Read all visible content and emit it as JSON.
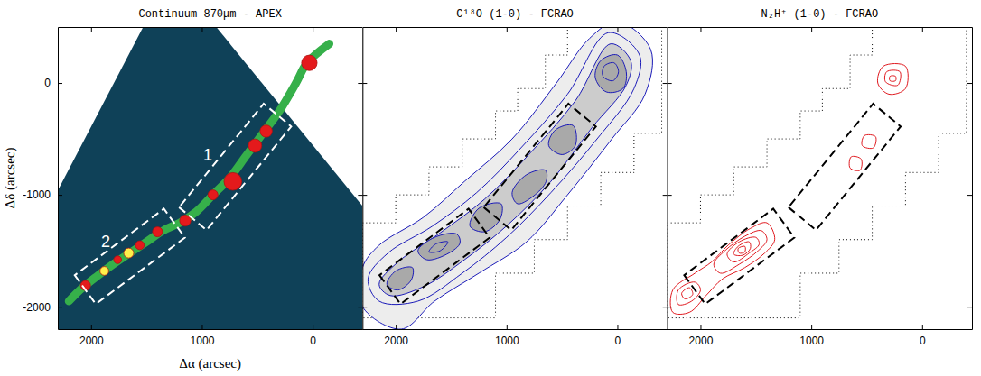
{
  "chart_data": [
    {
      "type": "image",
      "title": "Continuum 870μm - APEX",
      "x_label": "Δα (arcsec)",
      "y_label": "Δδ (arcsec)",
      "xlim": [
        2300,
        -450
      ],
      "ylim": [
        -2200,
        500
      ],
      "xticks": [
        2000,
        1000,
        0
      ],
      "yticks": [
        0,
        -1000,
        -2000
      ],
      "tick_labels": true,
      "coverage": {
        "x": [
          2300,
          1530,
          870,
          -450,
          -450,
          2300
        ],
        "y": [
          -960,
          500,
          500,
          -1100,
          -2200,
          -2200
        ],
        "color": "#0f4158"
      },
      "filament": {
        "x": [
          -150,
          50,
          150,
          300,
          450,
          600,
          750,
          900,
          1050,
          1200,
          1350,
          1500,
          1650,
          1800,
          1950,
          2100,
          2200
        ],
        "y": [
          350,
          180,
          0,
          -250,
          -450,
          -650,
          -850,
          -1000,
          -1150,
          -1250,
          -1320,
          -1420,
          -1520,
          -1620,
          -1730,
          -1850,
          -1950
        ],
        "color": "#36b04a"
      },
      "clumps": {
        "x": [
          30,
          420,
          520,
          720,
          900,
          1150,
          1400,
          1560,
          1660,
          1760,
          1880,
          2050
        ],
        "y": [
          180,
          -430,
          -560,
          -880,
          -1000,
          -1230,
          -1330,
          -1450,
          -1520,
          -1580,
          -1680,
          -1810
        ],
        "radius": [
          70,
          55,
          60,
          80,
          45,
          50,
          45,
          40,
          45,
          35,
          40,
          45
        ],
        "colors": [
          "#e41a1c",
          "#e41a1c",
          "#e41a1c",
          "#e41a1c",
          "#e41a1c",
          "#e41a1c",
          "#e41a1c",
          "#e41a1c",
          "#fff04a",
          "#e41a1c",
          "#fff04a",
          "#e41a1c"
        ]
      },
      "boxes": [
        {
          "label": "1",
          "x": [
            1206,
            958,
            194,
            442
          ],
          "y": [
            -1111,
            -1315,
            -389,
            -185
          ],
          "color": "#ffffff"
        },
        {
          "label": "2",
          "x": [
            2147,
            1957,
            1153,
            1343
          ],
          "y": [
            -1718,
            -1976,
            -1382,
            -1124
          ],
          "color": "#ffffff"
        }
      ]
    },
    {
      "type": "contour",
      "title": "C¹⁸O (1-0) - FCRAO",
      "xlim": [
        2300,
        -450
      ],
      "ylim": [
        -2200,
        500
      ],
      "xticks": [
        2000,
        1000,
        0
      ],
      "yticks": [
        0,
        -1000,
        -2000
      ],
      "tick_labels": "x",
      "color": "#1a1ab8",
      "coverage": {
        "x": [
          2300,
          2000,
          2000,
          1700,
          1700,
          1400,
          1400,
          1100,
          1100,
          900,
          900,
          650,
          650,
          450,
          450,
          -400,
          -400,
          -150,
          -150,
          150,
          150,
          450,
          450,
          750,
          750,
          1100,
          1100,
          2300
        ],
        "y": [
          -1250,
          -1250,
          -1000,
          -1000,
          -750,
          -750,
          -500,
          -500,
          -250,
          -250,
          -50,
          -50,
          250,
          250,
          500,
          500,
          -450,
          -450,
          -800,
          -800,
          -1100,
          -1100,
          -1400,
          -1400,
          -1700,
          -1700,
          -2100,
          -2100
        ],
        "line_style": "dotted"
      },
      "contours": [
        {
          "x": [
            0,
            250,
            550,
            950,
            1380,
            1750,
            2150,
            2300,
            2300,
            1950,
            1650,
            1250,
            820,
            450,
            50,
            -250,
            -300
          ],
          "y": [
            550,
            400,
            0,
            -500,
            -880,
            -1200,
            -1450,
            -1650,
            -2000,
            -2200,
            -1950,
            -1700,
            -1420,
            -1000,
            -500,
            -100,
            300
          ],
          "color": "#ededed"
        },
        {
          "x": [
            80,
            450,
            870,
            1270,
            1670,
            2070,
            2250,
            2150,
            1800,
            1400,
            1000,
            600,
            200,
            -150,
            -200
          ],
          "y": [
            450,
            -100,
            -580,
            -980,
            -1280,
            -1520,
            -1750,
            -1950,
            -1950,
            -1700,
            -1380,
            -980,
            -520,
            -50,
            250
          ],
          "color": "none"
        },
        {
          "x": [
            60,
            380,
            800,
            1200,
            1600,
            1980,
            2150,
            2050,
            1750,
            1380,
            980,
            600,
            230,
            -80,
            -120
          ],
          "y": [
            350,
            -160,
            -640,
            -1040,
            -1340,
            -1600,
            -1800,
            -1900,
            -1820,
            -1580,
            -1260,
            -880,
            -400,
            -20,
            200
          ],
          "color": "#cccccc"
        },
        {
          "x": [
            0,
            150,
            200,
            100,
            -50,
            -80
          ],
          "y": [
            250,
            200,
            50,
            -80,
            -50,
            100
          ],
          "color": "#a9a9a9"
        },
        {
          "x": [
            400,
            560,
            620,
            500,
            380
          ],
          "y": [
            -380,
            -420,
            -560,
            -640,
            -560
          ],
          "color": "#a9a9a9"
        },
        {
          "x": [
            650,
            820,
            950,
            900,
            720,
            640
          ],
          "y": [
            -780,
            -820,
            -980,
            -1080,
            -980,
            -870
          ],
          "color": "#a9a9a9"
        },
        {
          "x": [
            1050,
            1250,
            1330,
            1200,
            1060
          ],
          "y": [
            -1080,
            -1120,
            -1280,
            -1330,
            -1220
          ],
          "color": "#a9a9a9"
        },
        {
          "x": [
            1450,
            1650,
            1800,
            1720,
            1520,
            1420
          ],
          "y": [
            -1350,
            -1380,
            -1500,
            -1580,
            -1520,
            -1430
          ],
          "color": "#a9a9a9"
        },
        {
          "x": [
            1850,
            2000,
            2080,
            1980,
            1860
          ],
          "y": [
            -1650,
            -1680,
            -1800,
            -1850,
            -1760
          ],
          "color": "#a9a9a9"
        },
        {
          "x": [
            30,
            120,
            130,
            40,
            -10
          ],
          "y": [
            180,
            150,
            60,
            20,
            100
          ],
          "color": "none"
        },
        {
          "x": [
            1530,
            1640,
            1700,
            1600
          ],
          "y": [
            -1420,
            -1440,
            -1510,
            -1500
          ],
          "color": "none"
        }
      ],
      "boxes": [
        {
          "x": [
            1206,
            958,
            194,
            442
          ],
          "y": [
            -1111,
            -1315,
            -389,
            -185
          ],
          "color": "#000000"
        },
        {
          "x": [
            2147,
            1957,
            1153,
            1343
          ],
          "y": [
            -1718,
            -1976,
            -1382,
            -1124
          ],
          "color": "#000000"
        }
      ]
    },
    {
      "type": "contour",
      "title": "N₂H⁺ (1-0) - FCRAO",
      "xlim": [
        2300,
        -450
      ],
      "ylim": [
        -2200,
        500
      ],
      "xticks": [
        2000,
        1000,
        0
      ],
      "yticks": [
        0,
        -1000,
        -2000
      ],
      "tick_labels": "x",
      "color": "#e0191f",
      "coverage": {
        "x": [
          2300,
          2000,
          2000,
          1700,
          1700,
          1400,
          1400,
          1100,
          1100,
          900,
          900,
          650,
          650,
          450,
          450,
          -400,
          -400,
          -150,
          -150,
          150,
          150,
          450,
          450,
          750,
          750,
          1100,
          1100,
          2300
        ],
        "y": [
          -1250,
          -1250,
          -1000,
          -1000,
          -750,
          -750,
          -500,
          -500,
          -250,
          -250,
          -50,
          -50,
          250,
          250,
          500,
          500,
          -450,
          -450,
          -800,
          -800,
          -1100,
          -1100,
          -1400,
          -1400,
          -1700,
          -1700,
          -2100,
          -2100
        ],
        "line_style": "dotted"
      },
      "contours": [
        {
          "x": [
            1400,
            1550,
            1750,
            1900,
            2050,
            2250,
            2250,
            2100,
            1950,
            1800,
            1600,
            1420,
            1330
          ],
          "y": [
            -1250,
            -1300,
            -1450,
            -1600,
            -1700,
            -1850,
            -2050,
            -2050,
            -1900,
            -1750,
            -1650,
            -1520,
            -1400
          ],
          "color": "none"
        },
        {
          "x": [
            1450,
            1600,
            1780,
            1880,
            1820,
            1650,
            1480,
            1400
          ],
          "y": [
            -1320,
            -1370,
            -1500,
            -1620,
            -1700,
            -1620,
            -1500,
            -1400
          ],
          "color": "none"
        },
        {
          "x": [
            1500,
            1650,
            1760,
            1700,
            1560,
            1470
          ],
          "y": [
            -1380,
            -1420,
            -1530,
            -1600,
            -1520,
            -1440
          ],
          "color": "none"
        },
        {
          "x": [
            1560,
            1660,
            1700,
            1620,
            1550
          ],
          "y": [
            -1420,
            -1460,
            -1530,
            -1540,
            -1480
          ],
          "color": "none"
        },
        {
          "x": [
            1600,
            1660,
            1650,
            1600
          ],
          "y": [
            -1460,
            -1480,
            -1520,
            -1510
          ],
          "color": "none"
        },
        {
          "x": [
            2050,
            2200,
            2200,
            2080,
            2000
          ],
          "y": [
            -1780,
            -1850,
            -1980,
            -1950,
            -1850
          ],
          "color": "none"
        },
        {
          "x": [
            2100,
            2170,
            2140,
            2070
          ],
          "y": [
            -1830,
            -1880,
            -1930,
            -1890
          ],
          "color": "none"
        },
        {
          "x": [
            150,
            350,
            400,
            300,
            150
          ],
          "y": [
            150,
            150,
            0,
            -100,
            -50
          ],
          "color": "none"
        },
        {
          "x": [
            200,
            320,
            330,
            220
          ],
          "y": [
            100,
            100,
            10,
            -20
          ],
          "color": "none"
        },
        {
          "x": [
            240,
            290,
            290,
            240
          ],
          "y": [
            60,
            60,
            20,
            20
          ],
          "color": "none"
        },
        {
          "x": [
            420,
            520,
            540,
            440
          ],
          "y": [
            -480,
            -470,
            -560,
            -580
          ],
          "color": "none"
        },
        {
          "x": [
            550,
            640,
            650,
            560
          ],
          "y": [
            -680,
            -660,
            -760,
            -780
          ],
          "color": "none"
        }
      ],
      "boxes": [
        {
          "x": [
            1206,
            958,
            194,
            442
          ],
          "y": [
            -1111,
            -1315,
            -389,
            -185
          ],
          "color": "#000000"
        },
        {
          "x": [
            2147,
            1957,
            1153,
            1343
          ],
          "y": [
            -1718,
            -1976,
            -1382,
            -1124
          ],
          "color": "#000000"
        }
      ]
    }
  ]
}
